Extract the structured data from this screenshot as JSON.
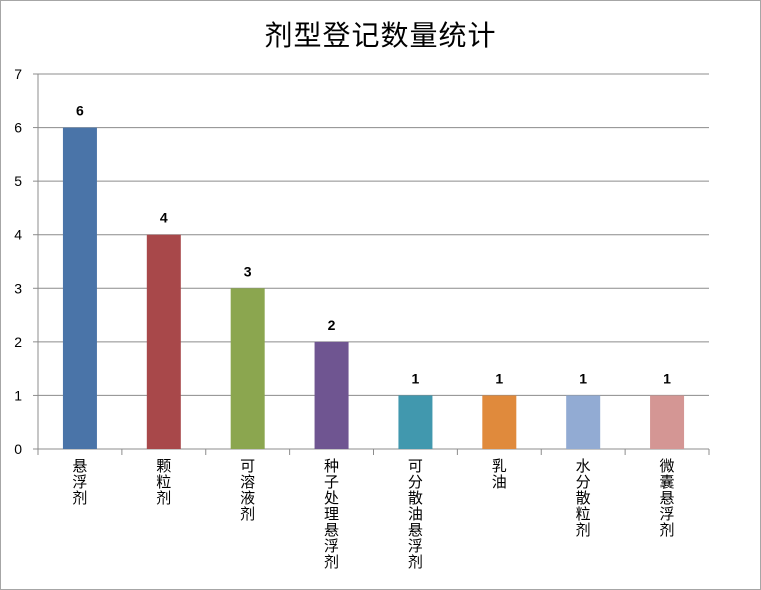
{
  "chart_data": {
    "type": "bar",
    "title": "剂型登记数量统计",
    "categories": [
      "悬浮剂",
      "颗粒剂",
      "可溶液剂",
      "种子处理悬浮剂",
      "可分散油悬浮剂",
      "乳油",
      "水分散粒剂",
      "微囊悬浮剂"
    ],
    "values": [
      6,
      4,
      3,
      2,
      1,
      1,
      1,
      1
    ],
    "colors": [
      "#4a74a8",
      "#a8484a",
      "#8ba64f",
      "#6f5591",
      "#4198ae",
      "#e08a3c",
      "#92abd3",
      "#d49694"
    ],
    "ylim": [
      0,
      7
    ],
    "yticks": [
      0,
      1,
      2,
      3,
      4,
      5,
      6,
      7
    ],
    "grid": true,
    "data_labels": true
  }
}
